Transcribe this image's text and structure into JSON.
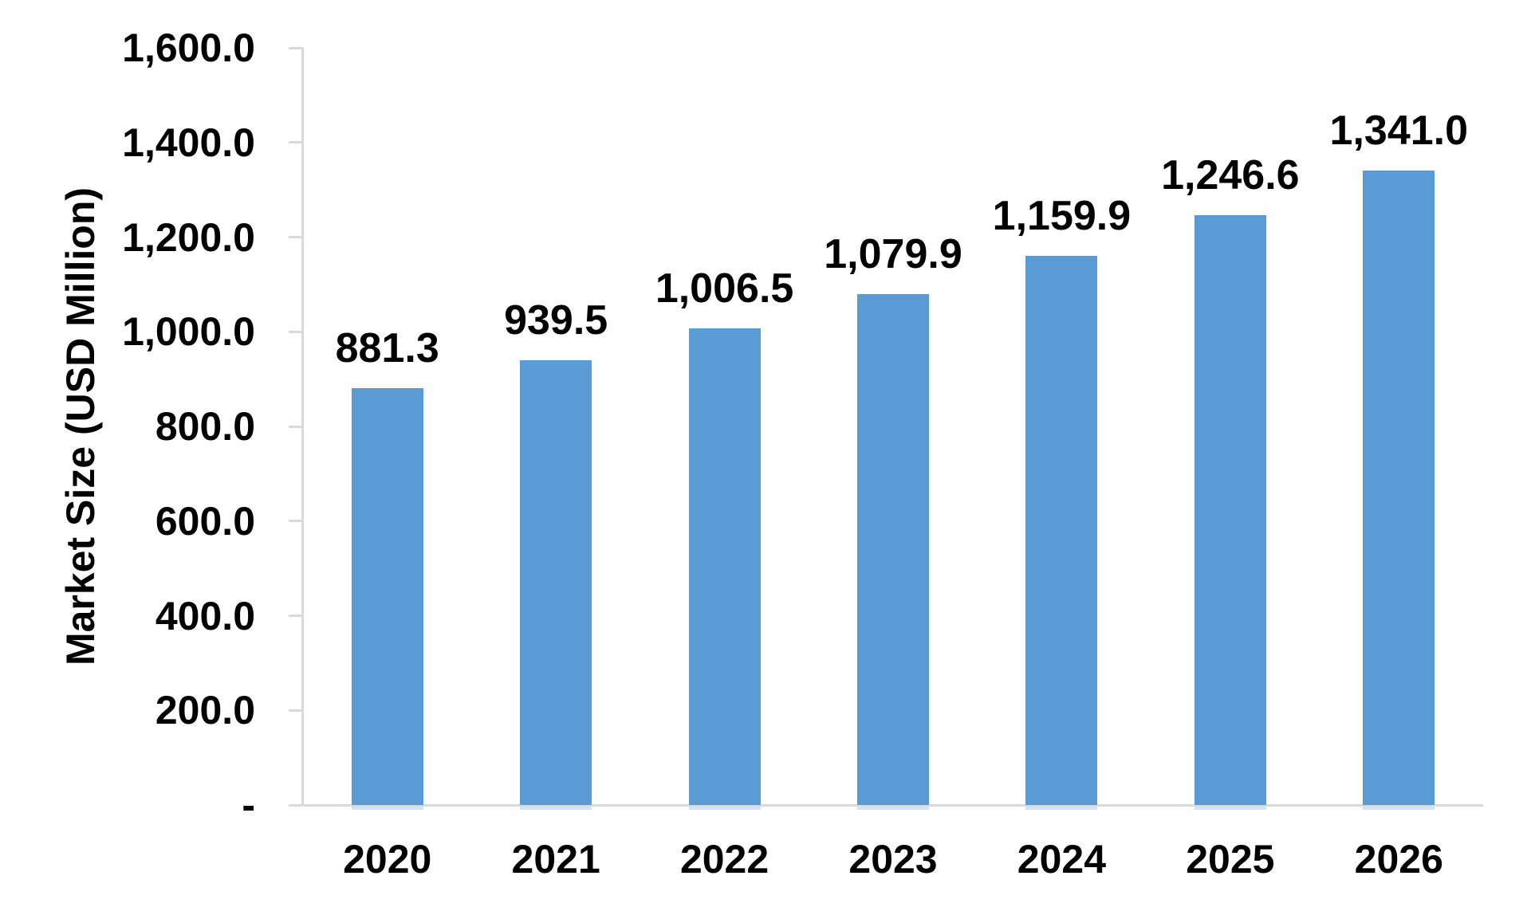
{
  "chart_data": {
    "type": "bar",
    "title": "",
    "categories": [
      "2020",
      "2021",
      "2022",
      "2023",
      "2024",
      "2025",
      "2026"
    ],
    "values": [
      881.3,
      939.5,
      1006.5,
      1079.9,
      1159.9,
      1246.6,
      1341.0
    ],
    "data_labels": [
      "881.3",
      "939.5",
      "1,006.5",
      "1,079.9",
      "1,159.9",
      "1,246.6",
      "1,341.0"
    ],
    "xlabel": "",
    "ylabel": "Market Size (USD Million)",
    "ylim": [
      0,
      1600
    ],
    "ytick_interval": 200,
    "yticks": [
      {
        "value": 0,
        "label": "-"
      },
      {
        "value": 200,
        "label": "200.0"
      },
      {
        "value": 400,
        "label": "400.0"
      },
      {
        "value": 600,
        "label": "600.0"
      },
      {
        "value": 800,
        "label": "800.0"
      },
      {
        "value": 1000,
        "label": "1,000.0"
      },
      {
        "value": 1200,
        "label": "1,200.0"
      },
      {
        "value": 1400,
        "label": "1,400.0"
      },
      {
        "value": 1600,
        "label": "1,600.0"
      }
    ],
    "grid": false,
    "legend": "none",
    "colors": {
      "bar": "#5B9BD5",
      "bar_base_strip": "#AECDE8",
      "axis": "#D9D9D9",
      "text": "#000000",
      "background": "#FFFFFF"
    }
  }
}
